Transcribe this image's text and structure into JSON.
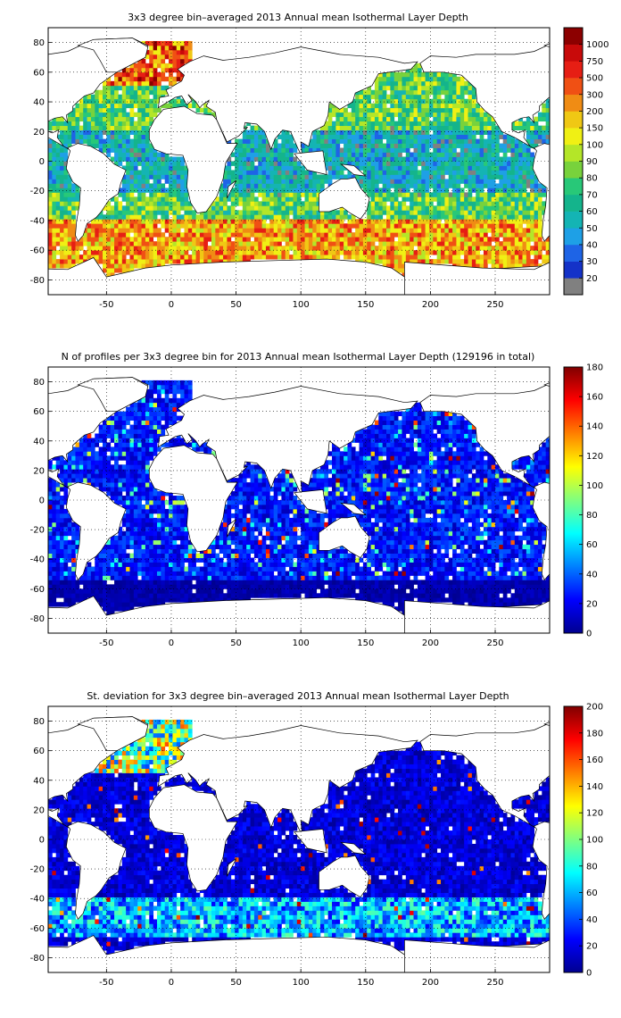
{
  "panels": [
    {
      "id": "ild",
      "title": "3x3 degree bin–averaged 2013 Annual mean Isothermal Layer Depth",
      "colorbar": {
        "type": "categorical",
        "labels": [
          "20",
          "30",
          "40",
          "50",
          "60",
          "70",
          "80",
          "90",
          "100",
          "150",
          "200",
          "300",
          "500",
          "750",
          "1000"
        ],
        "colors": [
          "#1432c8",
          "#1e64e6",
          "#1ea0e6",
          "#14b4b4",
          "#14b48c",
          "#28c878",
          "#78d23c",
          "#b4e628",
          "#f0f014",
          "#f0c814",
          "#f08c14",
          "#f05014",
          "#e61e14",
          "#c80a0a",
          "#8c0000"
        ],
        "nodata_color": "#808080"
      }
    },
    {
      "id": "count",
      "title": "N of profiles per 3x3 degree bin for 2013 Annual mean Isothermal Layer Depth  (129196 in total)",
      "colorbar": {
        "type": "continuous",
        "ticks": [
          "0",
          "20",
          "40",
          "60",
          "80",
          "100",
          "120",
          "140",
          "160",
          "180"
        ],
        "vmin": 0,
        "vmax": 180
      }
    },
    {
      "id": "std",
      "title": "St. deviation for 3x3 degree bin–averaged 2013 Annual mean Isothermal Layer Depth",
      "colorbar": {
        "type": "continuous",
        "ticks": [
          "0",
          "20",
          "40",
          "60",
          "80",
          "100",
          "120",
          "140",
          "160",
          "180",
          "200"
        ],
        "vmin": 0,
        "vmax": 200
      }
    }
  ],
  "axes": {
    "x_ticks": [
      "-50",
      "0",
      "50",
      "100",
      "150",
      "200",
      "250"
    ],
    "y_ticks": [
      "80",
      "60",
      "40",
      "20",
      "0",
      "-20",
      "-40",
      "-60",
      "-80"
    ],
    "xlim": [
      -95,
      292
    ],
    "ylim": [
      -90,
      90
    ],
    "grid": "dotted"
  }
}
